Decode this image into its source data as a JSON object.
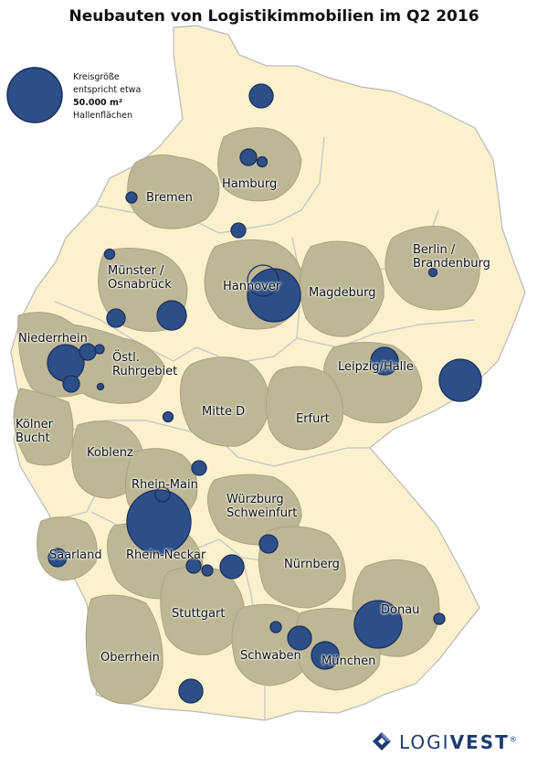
{
  "title": "Neubauten von Logistikimmobilien im Q2 2016",
  "legend": {
    "line1": "Kreisgröße",
    "line2": "entspricht etwa",
    "line3": "50.000 m²",
    "line4": "Hallenflächen"
  },
  "regions": {
    "bremen": "Bremen",
    "hamburg": "Hamburg",
    "berlin_1": "Berlin /",
    "berlin_2": "Brandenburg",
    "muenster_1": "Münster /",
    "muenster_2": "Osnabrück",
    "hannover": "Hannover",
    "magdeburg": "Magdeburg",
    "niederrhein": "Niederrhein",
    "ruhr_1": "Östl.",
    "ruhr_2": "Ruhrgebiet",
    "leipzig": "Leipzig/Halle",
    "koeln_1": "Kölner",
    "koeln_2": "Bucht",
    "mitte": "Mitte D",
    "erfurt": "Erfurt",
    "koblenz": "Koblenz",
    "rheinmain": "Rhein-Main",
    "wuerzburg_1": "Würzburg",
    "wuerzburg_2": "Schweinfurt",
    "saarland": "Saarland",
    "rheinneckar": "Rhein-Neckar",
    "nuernberg": "Nürnberg",
    "donau": "Donau",
    "stuttgart": "Stuttgart",
    "schwaben": "Schwaben",
    "muenchen": "München",
    "oberrhein": "Oberrhein"
  },
  "brand": {
    "light": "LOGI",
    "heavy": "VEST",
    "reg": "®"
  },
  "colors": {
    "land": "#fbf1cc",
    "region": "#bdb796",
    "circle": "#2d4f88",
    "circle_stroke": "#1b2f5c",
    "border": "#b9b9b9"
  }
}
